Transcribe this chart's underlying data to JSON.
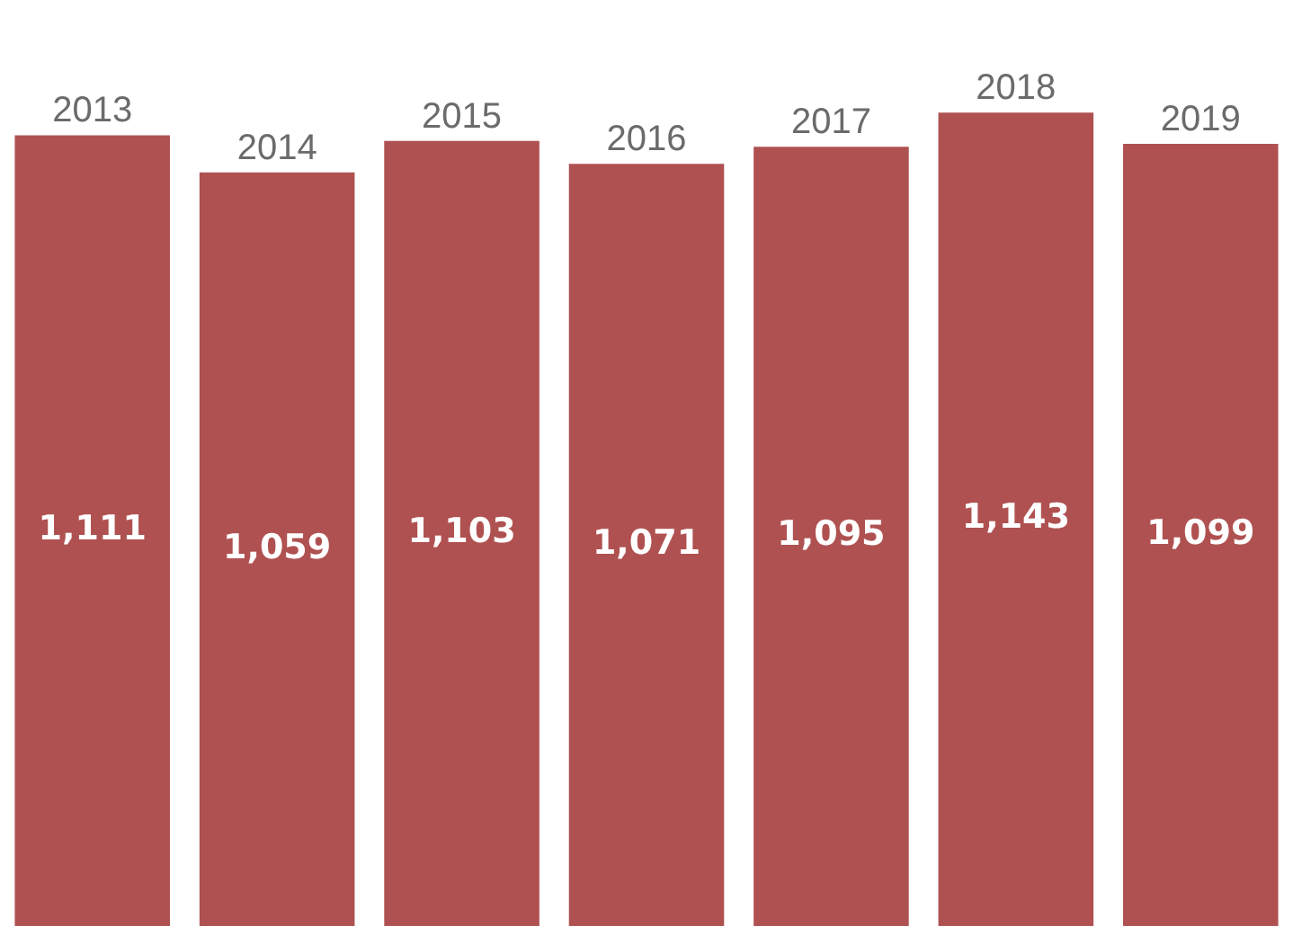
{
  "chart_data": {
    "type": "bar",
    "categories": [
      "2013",
      "2014",
      "2015",
      "2016",
      "2017",
      "2018",
      "2019"
    ],
    "values": [
      1111,
      1059,
      1103,
      1071,
      1095,
      1143,
      1099
    ],
    "color": "#b05151",
    "value_labels": [
      "1,111",
      "1,059",
      "1,103",
      "1,071",
      "1,095",
      "1,143",
      "1,099"
    ]
  }
}
